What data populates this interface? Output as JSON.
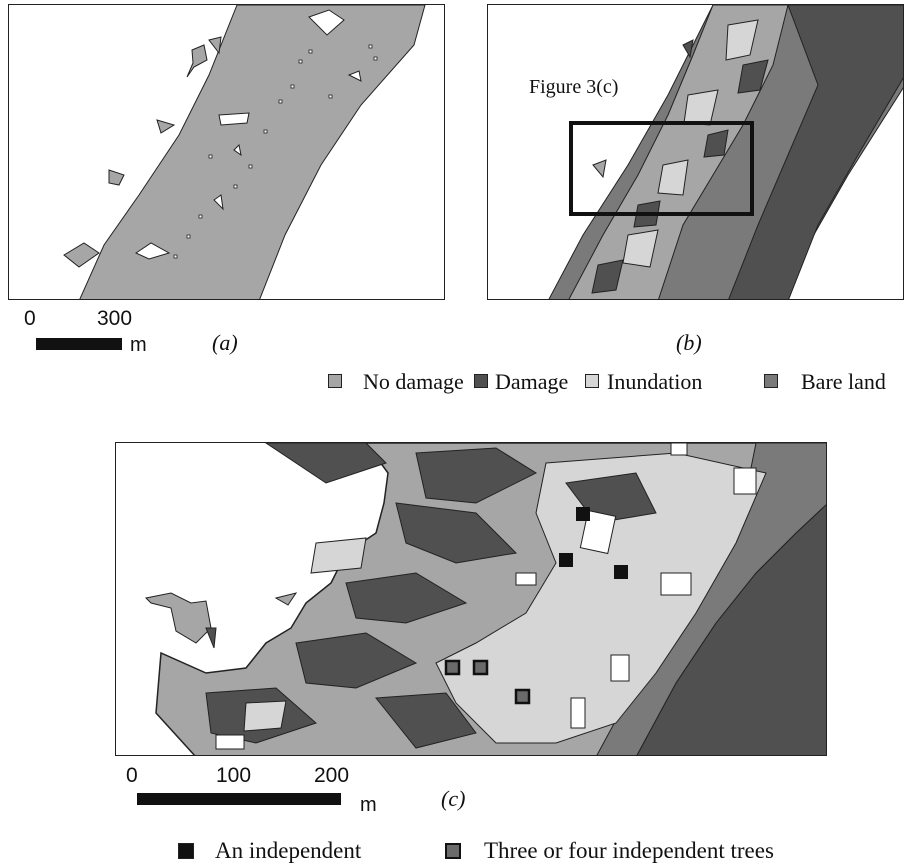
{
  "panel_a": {
    "label": "(a)",
    "scale": {
      "tick_zero": "0",
      "tick_max": "300",
      "unit": "m"
    }
  },
  "panel_b": {
    "label": "(b)",
    "callout": "Figure 3(c)"
  },
  "legend_top": {
    "items": [
      {
        "label": "No damage",
        "color": "#a6a6a6"
      },
      {
        "label": "Damage",
        "color": "#505050"
      },
      {
        "label": "Inundation",
        "color": "#d6d6d6"
      },
      {
        "label": "Bare land",
        "color": "#7a7a7a"
      }
    ]
  },
  "panel_c": {
    "label": "(c)",
    "scale": {
      "tick_zero": "0",
      "tick_mid": "100",
      "tick_max": "200",
      "unit": "m"
    }
  },
  "legend_bottom": {
    "items": [
      {
        "label": "An independent",
        "color": "#111111"
      },
      {
        "label": "Three or four independent trees",
        "color": "#6a6a6a"
      }
    ]
  },
  "colors": {
    "no_damage": "#a6a6a6",
    "damage": "#505050",
    "inundation": "#d6d6d6",
    "bare_land": "#7a7a7a",
    "outline": "#222222"
  }
}
